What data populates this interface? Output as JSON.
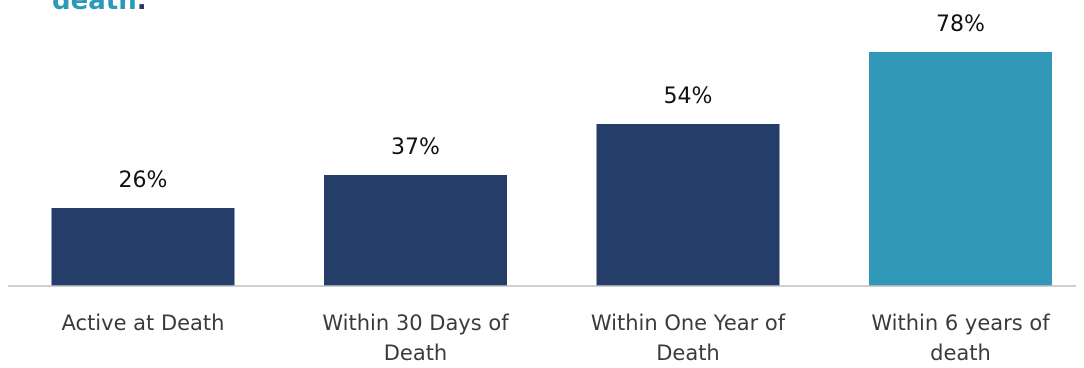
{
  "title": {
    "text": "death",
    "trailing": "."
  },
  "chart_data": {
    "type": "bar",
    "categories": [
      "Active at Death",
      "Within 30 Days of Death",
      "Within One Year of Death",
      "Within 6 years of death"
    ],
    "category_lines": [
      [
        "Active at Death"
      ],
      [
        "Within 30 Days of",
        "Death"
      ],
      [
        "Within One Year of",
        "Death"
      ],
      [
        "Within 6 years of",
        "death"
      ]
    ],
    "values": [
      26,
      37,
      54,
      78
    ],
    "value_labels": [
      "26%",
      "37%",
      "54%",
      "78%"
    ],
    "colors": [
      "#253d69",
      "#253d69",
      "#253d69",
      "#3298b7"
    ],
    "ylim": [
      0,
      100
    ],
    "grid": false,
    "legend": "none"
  }
}
